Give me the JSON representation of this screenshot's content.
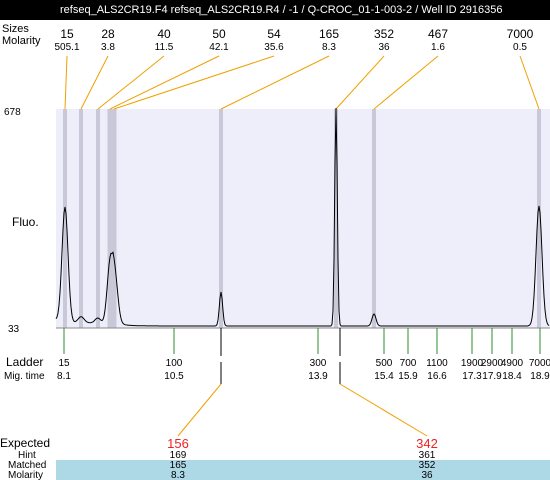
{
  "header": {
    "title": "refseq_ALS2CR19.F4  refseq_ALS2CR19.R4 / -1 / Q-CROC_01-1-003-2 / Well ID 2916356"
  },
  "labels": {
    "sizes": "Sizes",
    "molarity": "Molarity",
    "fluo": "Fluo.",
    "ladder": "Ladder",
    "mig_time": "Mig. time",
    "expected": "Expected",
    "hint": "Hint",
    "matched": "Matched",
    "molarity_bottom": "Molarity"
  },
  "chart_data": {
    "type": "line",
    "y_axis": {
      "label": "Fluo.",
      "min": 33,
      "max": 678,
      "ticks": [
        33,
        678
      ]
    },
    "peaks": [
      {
        "size": "15",
        "molarity": "505.1"
      },
      {
        "size": "28",
        "molarity": "3.8"
      },
      {
        "size": "40",
        "molarity": "11.5"
      },
      {
        "size": "50",
        "molarity": "42.1"
      },
      {
        "size": "54",
        "molarity": "35.6"
      },
      {
        "size": "165",
        "molarity": "8.3"
      },
      {
        "size": "352",
        "molarity": "36"
      },
      {
        "size": "467",
        "molarity": "1.6"
      },
      {
        "size": "7000",
        "molarity": "0.5"
      }
    ],
    "ladder": [
      {
        "size": "15",
        "mig_time": "8.1"
      },
      {
        "size": "100",
        "mig_time": "10.5"
      },
      {
        "size": "300",
        "mig_time": "13.9"
      },
      {
        "size": "500",
        "mig_time": "15.4"
      },
      {
        "size": "700",
        "mig_time": "15.9"
      },
      {
        "size": "1100",
        "mig_time": "16.6"
      },
      {
        "size": "1900",
        "mig_time": "17.3"
      },
      {
        "size": "2900",
        "mig_time": "17.9"
      },
      {
        "size": "4900",
        "mig_time": "18.4"
      },
      {
        "size": "7000",
        "mig_time": "18.9"
      }
    ],
    "expected": [
      {
        "expected": "156",
        "hint": "169",
        "matched": "165",
        "molarity": "8.3"
      },
      {
        "expected": "342",
        "hint": "361",
        "matched": "352",
        "molarity": "36"
      }
    ]
  },
  "colors": {
    "header_bg": "#000000",
    "plot_bg": "#eeeefa",
    "band": "#c8c8d8",
    "leader": "#f0a000",
    "ladder_tick": "#2e8b2e",
    "expected_text": "#ee2222",
    "table_band": "#add8e6",
    "trace": "#000000"
  }
}
